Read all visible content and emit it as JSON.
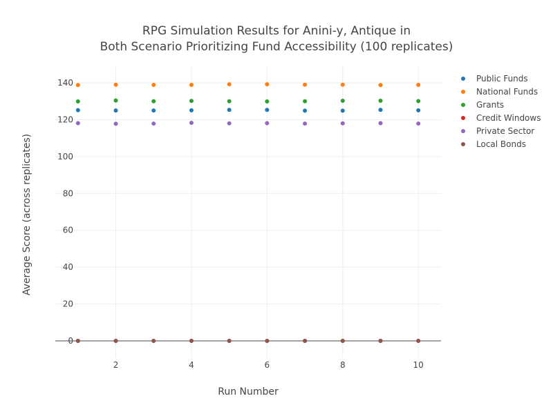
{
  "chart_data": {
    "type": "scatter",
    "title_lines": [
      "RPG Simulation Results for Anini-y, Antique in",
      "Both Scenario Prioritizing Fund Accessibility (100 replicates)"
    ],
    "xlabel": "Run Number",
    "ylabel": "Average Score (across replicates)",
    "xlim": [
      0.4,
      10.6
    ],
    "ylim": [
      -9,
      149
    ],
    "x_ticks": [
      2,
      4,
      6,
      8,
      10
    ],
    "y_ticks": [
      0,
      20,
      40,
      60,
      80,
      100,
      120,
      140
    ],
    "grid": true,
    "legend_position": "top-right",
    "x": [
      1,
      2,
      3,
      4,
      5,
      6,
      7,
      8,
      9,
      10
    ],
    "series": [
      {
        "name": "Public Funds",
        "color": "#1f77b4",
        "values": [
          125.2,
          125.0,
          125.0,
          125.1,
          125.3,
          125.3,
          124.9,
          124.9,
          125.3,
          125.1
        ]
      },
      {
        "name": "National Funds",
        "color": "#ff7f0e",
        "values": [
          138.8,
          139.0,
          138.9,
          138.9,
          139.2,
          139.2,
          139.0,
          139.0,
          138.8,
          138.9
        ]
      },
      {
        "name": "Grants",
        "color": "#2ca02c",
        "values": [
          129.9,
          130.4,
          130.0,
          130.2,
          130.0,
          129.9,
          130.0,
          130.3,
          130.3,
          130.1
        ]
      },
      {
        "name": "Credit Windows",
        "color": "#d62728",
        "values": [
          0,
          0,
          0,
          0,
          0,
          0,
          0,
          0,
          0,
          0
        ]
      },
      {
        "name": "Private Sector",
        "color": "#9467bd",
        "values": [
          118.1,
          117.8,
          117.9,
          118.3,
          118.0,
          118.1,
          117.9,
          118.0,
          118.1,
          117.9
        ]
      },
      {
        "name": "Local Bonds",
        "color": "#8c564b",
        "values": [
          0,
          0,
          0,
          0,
          0,
          0,
          0,
          0,
          0,
          0
        ]
      }
    ]
  }
}
